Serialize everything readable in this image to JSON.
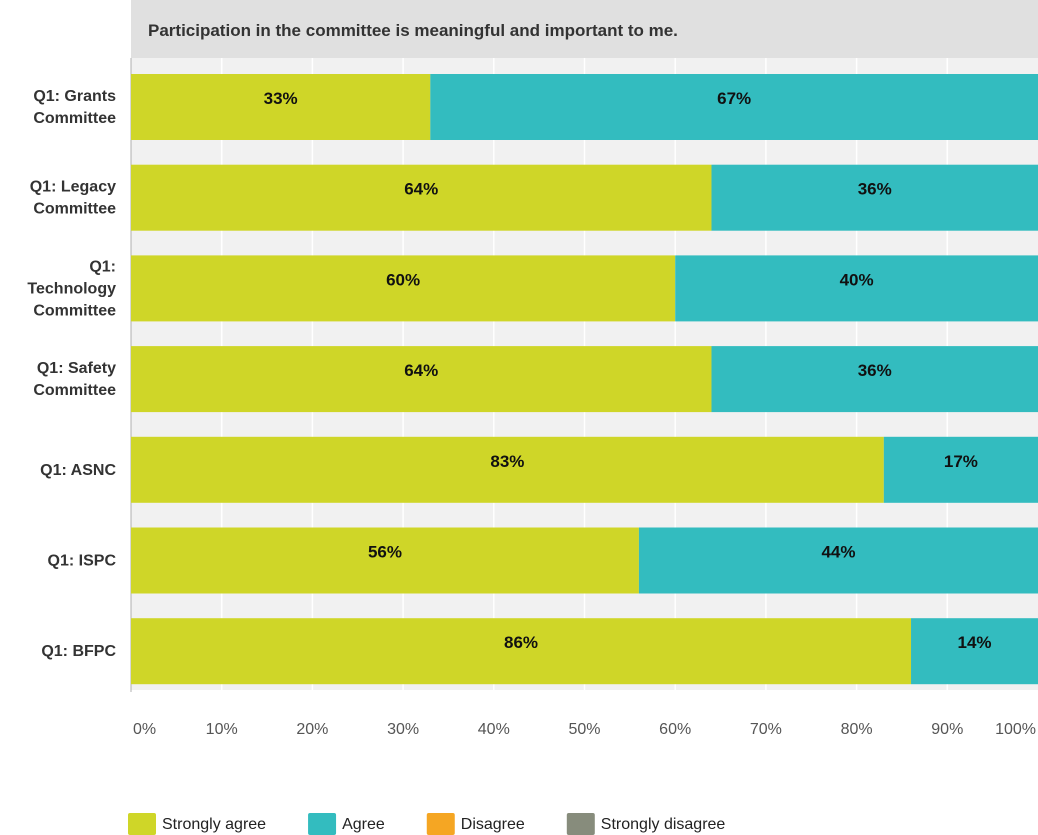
{
  "chart_data": {
    "type": "bar",
    "orientation": "horizontal",
    "stacked": true,
    "title": "Participation in the committee is meaningful and important to me.",
    "categories": [
      [
        "Q1: Grants",
        "Committee"
      ],
      [
        "Q1: Legacy",
        "Committee"
      ],
      [
        "Q1:",
        "Technology",
        "Committee"
      ],
      [
        "Q1: Safety",
        "Committee"
      ],
      [
        "Q1: ASNC"
      ],
      [
        "Q1: ISPC"
      ],
      [
        "Q1: BFPC"
      ]
    ],
    "series": [
      {
        "name": "Strongly agree",
        "color": "#cfd628",
        "values": [
          33,
          64,
          60,
          64,
          83,
          56,
          86
        ],
        "labels": [
          "33%",
          "64%",
          "60%",
          "64%",
          "83%",
          "56%",
          "86%"
        ]
      },
      {
        "name": "Agree",
        "color": "#33bcbf",
        "values": [
          67,
          36,
          40,
          36,
          17,
          44,
          14
        ],
        "labels": [
          "67%",
          "36%",
          "40%",
          "36%",
          "17%",
          "44%",
          "14%"
        ]
      },
      {
        "name": "Disagree",
        "color": "#f5a623",
        "values": [
          0,
          0,
          0,
          0,
          0,
          0,
          0
        ],
        "labels": []
      },
      {
        "name": "Strongly disagree",
        "color": "#878c7c",
        "values": [
          0,
          0,
          0,
          0,
          0,
          0,
          0
        ],
        "labels": []
      }
    ],
    "xlim": [
      0,
      100
    ],
    "xticks": [
      "0%",
      "10%",
      "20%",
      "30%",
      "40%",
      "50%",
      "60%",
      "70%",
      "80%",
      "90%",
      "100%"
    ],
    "grid": true,
    "legend_position": "bottom"
  }
}
